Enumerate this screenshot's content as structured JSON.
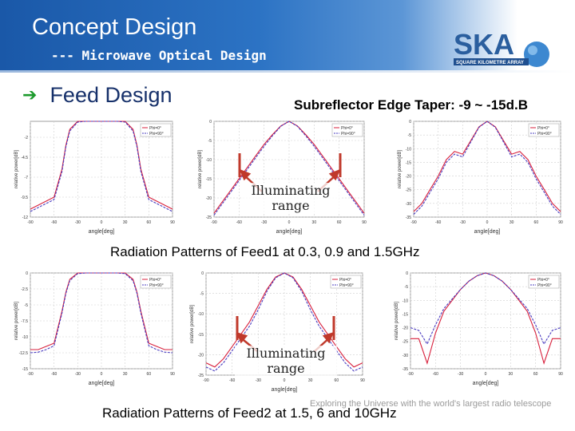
{
  "header": {
    "title": "Concept Design",
    "subtitle": "--- Microwave Optical Design"
  },
  "logo": {
    "text": "SKA",
    "tagline": "SQUARE KILOMETRE ARRAY"
  },
  "bullet": {
    "icon": "arrow-right-icon",
    "text": "Feed Design"
  },
  "taper_label": "Subreflector Edge Taper: -9 ~ -15d.B",
  "captions": {
    "feed1": "Radiation Patterns of Feed1 at 0.3, 0.9 and 1.5GHz",
    "feed2": "Radiation Patterns of Feed2 at 1.5, 6 and 10GHz"
  },
  "annotations": {
    "top": [
      "Illuminating",
      "range"
    ],
    "bottom": [
      "Illuminating",
      "range"
    ]
  },
  "footer_note": "Exploring the Universe with the world's largest radio telescope",
  "colors": {
    "phi0": "#d8203c",
    "phi90": "#4a3cc0"
  },
  "chart_data": [
    {
      "type": "line",
      "xlabel": "angle[deg]",
      "ylabel": "relative power[dB]",
      "legend": [
        "Phi=0°",
        "Phi=90°"
      ],
      "legend_position": "top-right",
      "xlim": [
        -90,
        90
      ],
      "ylim": [
        -12,
        0
      ],
      "x": [
        -90,
        -80,
        -70,
        -60,
        -50,
        -45,
        -40,
        -30,
        -20,
        -10,
        0,
        10,
        20,
        30,
        40,
        45,
        50,
        60,
        70,
        80,
        90
      ],
      "series": [
        {
          "name": "Phi=0°",
          "values": [
            -11,
            -10.5,
            -10,
            -9.5,
            -6,
            -3,
            -1,
            0,
            0,
            0,
            0,
            0,
            0,
            0,
            -1,
            -3,
            -6,
            -9.5,
            -10,
            -10.5,
            -11
          ]
        },
        {
          "name": "Phi=90°",
          "values": [
            -11.3,
            -10.8,
            -10.3,
            -9.8,
            -6.3,
            -3.2,
            -1.2,
            -0.1,
            0,
            0,
            0,
            0,
            0,
            -0.1,
            -1.2,
            -3.2,
            -6.3,
            -9.8,
            -10.3,
            -10.8,
            -11.3
          ]
        }
      ]
    },
    {
      "type": "line",
      "xlabel": "angle[deg]",
      "ylabel": "relative power[dB]",
      "legend": [
        "Phi=0°",
        "Phi=90°"
      ],
      "legend_position": "top-right",
      "xlim": [
        -90,
        90
      ],
      "ylim": [
        -25,
        0
      ],
      "x": [
        -90,
        -80,
        -70,
        -60,
        -50,
        -40,
        -30,
        -20,
        -10,
        0,
        10,
        20,
        30,
        40,
        50,
        60,
        70,
        80,
        90
      ],
      "series": [
        {
          "name": "Phi=0°",
          "values": [
            -24,
            -21,
            -18,
            -15,
            -12,
            -9,
            -6,
            -3.5,
            -1.2,
            0,
            -1.2,
            -3.5,
            -6,
            -9,
            -12,
            -15,
            -18,
            -21,
            -24
          ]
        },
        {
          "name": "Phi=90°",
          "values": [
            -24.5,
            -21.5,
            -18.5,
            -15.5,
            -12.5,
            -9.5,
            -6.5,
            -3.8,
            -1.3,
            0,
            -1.3,
            -3.8,
            -6.5,
            -9.5,
            -12.5,
            -15.5,
            -18.5,
            -21.5,
            -24.5
          ]
        }
      ]
    },
    {
      "type": "line",
      "xlabel": "angle[deg]",
      "ylabel": "relative power[dB]",
      "legend": [
        "Phi=0°",
        "Phi=90°"
      ],
      "legend_position": "top-right",
      "xlim": [
        -90,
        90
      ],
      "ylim": [
        -35,
        0
      ],
      "x": [
        -90,
        -80,
        -70,
        -60,
        -50,
        -40,
        -30,
        -20,
        -10,
        0,
        10,
        20,
        30,
        40,
        50,
        60,
        70,
        80,
        90
      ],
      "series": [
        {
          "name": "Phi=0°",
          "values": [
            -33,
            -30,
            -25,
            -20,
            -14,
            -11,
            -12,
            -7,
            -2,
            0,
            -2,
            -7,
            -12,
            -11,
            -14,
            -20,
            -25,
            -30,
            -33
          ]
        },
        {
          "name": "Phi=90°",
          "values": [
            -34,
            -31,
            -26,
            -21,
            -15,
            -12,
            -13,
            -7.5,
            -2.2,
            0,
            -2.2,
            -7.5,
            -13,
            -12,
            -15,
            -21,
            -26,
            -31,
            -34
          ]
        }
      ]
    },
    {
      "type": "line",
      "xlabel": "angle[deg]",
      "ylabel": "relative power[dB]",
      "legend": [
        "Phi=0°",
        "Phi=90°"
      ],
      "legend_position": "top-right",
      "xlim": [
        -90,
        90
      ],
      "ylim": [
        -15,
        0
      ],
      "x": [
        -90,
        -80,
        -70,
        -60,
        -50,
        -45,
        -40,
        -30,
        -20,
        -10,
        0,
        10,
        20,
        30,
        40,
        45,
        50,
        60,
        70,
        80,
        90
      ],
      "series": [
        {
          "name": "Phi=0°",
          "values": [
            -12,
            -12,
            -11.5,
            -11,
            -6,
            -3,
            -1,
            0,
            0,
            0,
            0,
            0,
            0,
            0,
            -1,
            -3,
            -6,
            -11,
            -11.5,
            -12,
            -12
          ]
        },
        {
          "name": "Phi=90°",
          "values": [
            -12.5,
            -12.4,
            -12,
            -11.4,
            -6.3,
            -3.2,
            -1.2,
            -0.1,
            0,
            0,
            0,
            0,
            0,
            -0.1,
            -1.2,
            -3.2,
            -6.3,
            -11.4,
            -12,
            -12.4,
            -12.5
          ]
        }
      ]
    },
    {
      "type": "line",
      "xlabel": "angle[deg]",
      "ylabel": "relative power[dB]",
      "legend": [
        "Phi=0°",
        "Phi=90°"
      ],
      "legend_position": "top-right",
      "xlim": [
        -90,
        90
      ],
      "ylim": [
        -25,
        0
      ],
      "x": [
        -90,
        -80,
        -70,
        -60,
        -50,
        -40,
        -30,
        -20,
        -10,
        0,
        10,
        20,
        30,
        40,
        50,
        60,
        70,
        80,
        90
      ],
      "series": [
        {
          "name": "Phi=0°",
          "values": [
            -22,
            -23,
            -21,
            -18,
            -15,
            -12,
            -8,
            -4,
            -1,
            0,
            -1,
            -4,
            -8,
            -12,
            -15,
            -18,
            -21,
            -23,
            -22
          ]
        },
        {
          "name": "Phi=90°",
          "values": [
            -23,
            -24,
            -22,
            -19,
            -16,
            -13,
            -9,
            -4.5,
            -1.2,
            0,
            -1.2,
            -4.5,
            -9,
            -13,
            -16,
            -19,
            -22,
            -24,
            -23
          ]
        }
      ]
    },
    {
      "type": "line",
      "xlabel": "angle[deg]",
      "ylabel": "relative power[dB]",
      "legend": [
        "Phi=0°",
        "Phi=90°"
      ],
      "legend_position": "top-right",
      "xlim": [
        -90,
        90
      ],
      "ylim": [
        -35,
        0
      ],
      "x": [
        -90,
        -80,
        -70,
        -60,
        -50,
        -40,
        -30,
        -20,
        -10,
        0,
        10,
        20,
        30,
        40,
        50,
        60,
        70,
        80,
        90
      ],
      "series": [
        {
          "name": "Phi=0°",
          "values": [
            -24,
            -24,
            -33,
            -22,
            -14,
            -10,
            -6,
            -3,
            -1,
            0,
            -1,
            -3,
            -6,
            -10,
            -14,
            -22,
            -33,
            -24,
            -24
          ]
        },
        {
          "name": "Phi=90°",
          "values": [
            -20,
            -21,
            -26,
            -19,
            -13,
            -9.5,
            -6,
            -3,
            -1,
            0,
            -1,
            -3,
            -6,
            -9.5,
            -13,
            -19,
            -26,
            -21,
            -20
          ]
        }
      ]
    }
  ]
}
